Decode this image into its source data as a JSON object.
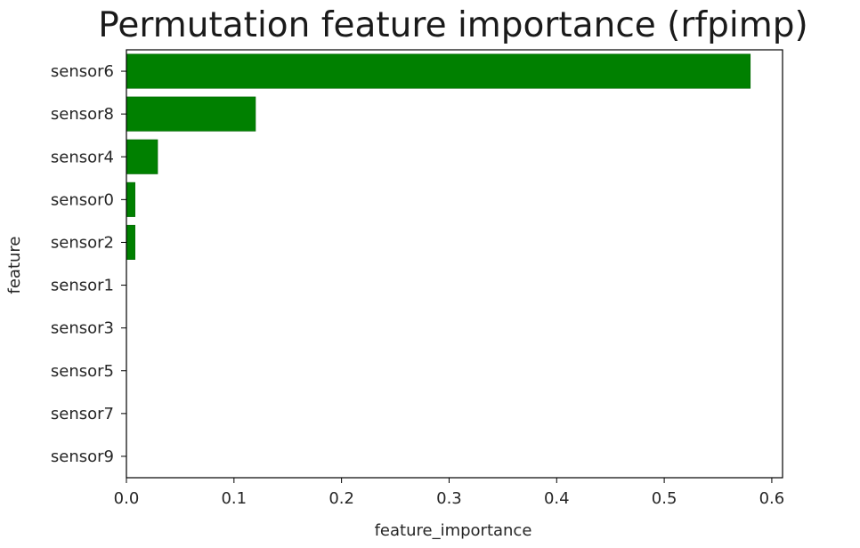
{
  "chart_data": {
    "type": "bar",
    "orientation": "horizontal",
    "title": "Permutation feature importance (rfpimp)",
    "xlabel": "feature_importance",
    "ylabel": "feature",
    "categories": [
      "sensor6",
      "sensor8",
      "sensor4",
      "sensor0",
      "sensor2",
      "sensor1",
      "sensor3",
      "sensor5",
      "sensor7",
      "sensor9"
    ],
    "values": [
      0.58,
      0.12,
      0.029,
      0.008,
      0.008,
      0.0,
      0.0,
      0.0,
      0.0,
      0.0
    ],
    "xlim": [
      0,
      0.61
    ],
    "xticks": [
      0.0,
      0.1,
      0.2,
      0.3,
      0.4,
      0.5,
      0.6
    ],
    "xtick_labels": [
      "0.0",
      "0.1",
      "0.2",
      "0.3",
      "0.4",
      "0.5",
      "0.6"
    ],
    "grid": false,
    "bar_color": "#008000",
    "bar_edge_color": "#006400"
  }
}
